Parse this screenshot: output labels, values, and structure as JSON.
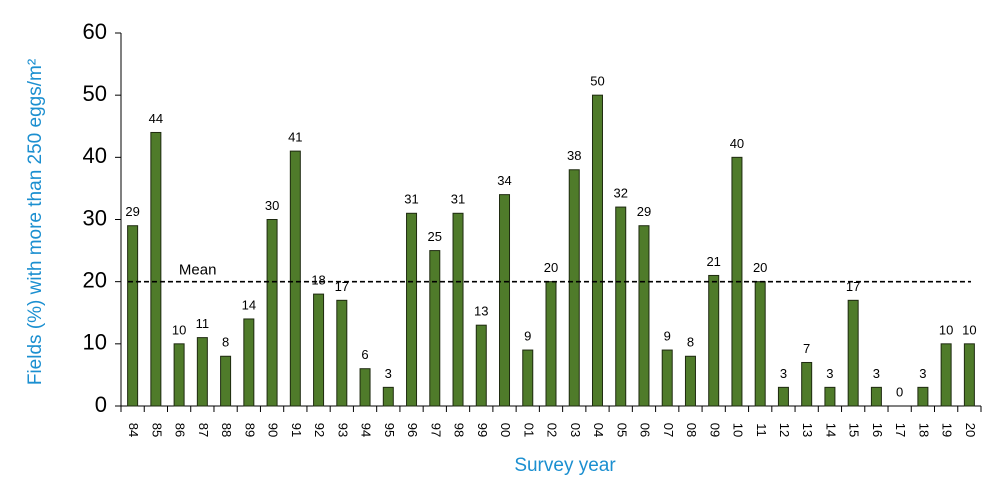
{
  "chart_data": {
    "type": "bar",
    "x_label": "Survey year",
    "y_label": "Fields (%) with more than 250 eggs/m²",
    "categories": [
      "84",
      "85",
      "86",
      "87",
      "88",
      "89",
      "90",
      "91",
      "92",
      "93",
      "94",
      "95",
      "96",
      "97",
      "98",
      "99",
      "00",
      "01",
      "02",
      "03",
      "04",
      "05",
      "06",
      "07",
      "08",
      "09",
      "10",
      "11",
      "12",
      "13",
      "14",
      "15",
      "16",
      "17",
      "18",
      "19",
      "20"
    ],
    "values": [
      29,
      44,
      10,
      11,
      8,
      14,
      30,
      41,
      18,
      17,
      6,
      3,
      31,
      25,
      31,
      13,
      34,
      9,
      20,
      38,
      50,
      32,
      29,
      9,
      8,
      21,
      40,
      20,
      3,
      7,
      3,
      17,
      3,
      0,
      3,
      10,
      10
    ],
    "color": "#4f7b2a",
    "ylim": [
      0,
      60
    ],
    "yticks": [
      0,
      10,
      20,
      30,
      40,
      50,
      60
    ],
    "reference_line": {
      "value": 20,
      "label": "Mean"
    }
  }
}
